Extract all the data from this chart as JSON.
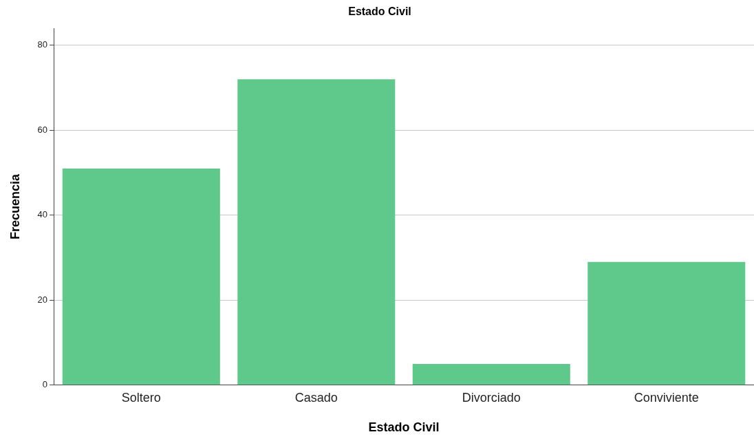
{
  "chart_data": {
    "type": "bar",
    "title": "Estado Civil",
    "xlabel": "Estado Civil",
    "ylabel": "Frecuencia",
    "categories": [
      "Soltero",
      "Casado",
      "Divorciado",
      "Conviviente"
    ],
    "values": [
      51,
      72,
      5,
      29
    ],
    "color": "#5ec98b",
    "ylim": [
      0,
      84
    ],
    "yticks": [
      0,
      20,
      40,
      60,
      80
    ],
    "grid": "y",
    "legend": false
  }
}
